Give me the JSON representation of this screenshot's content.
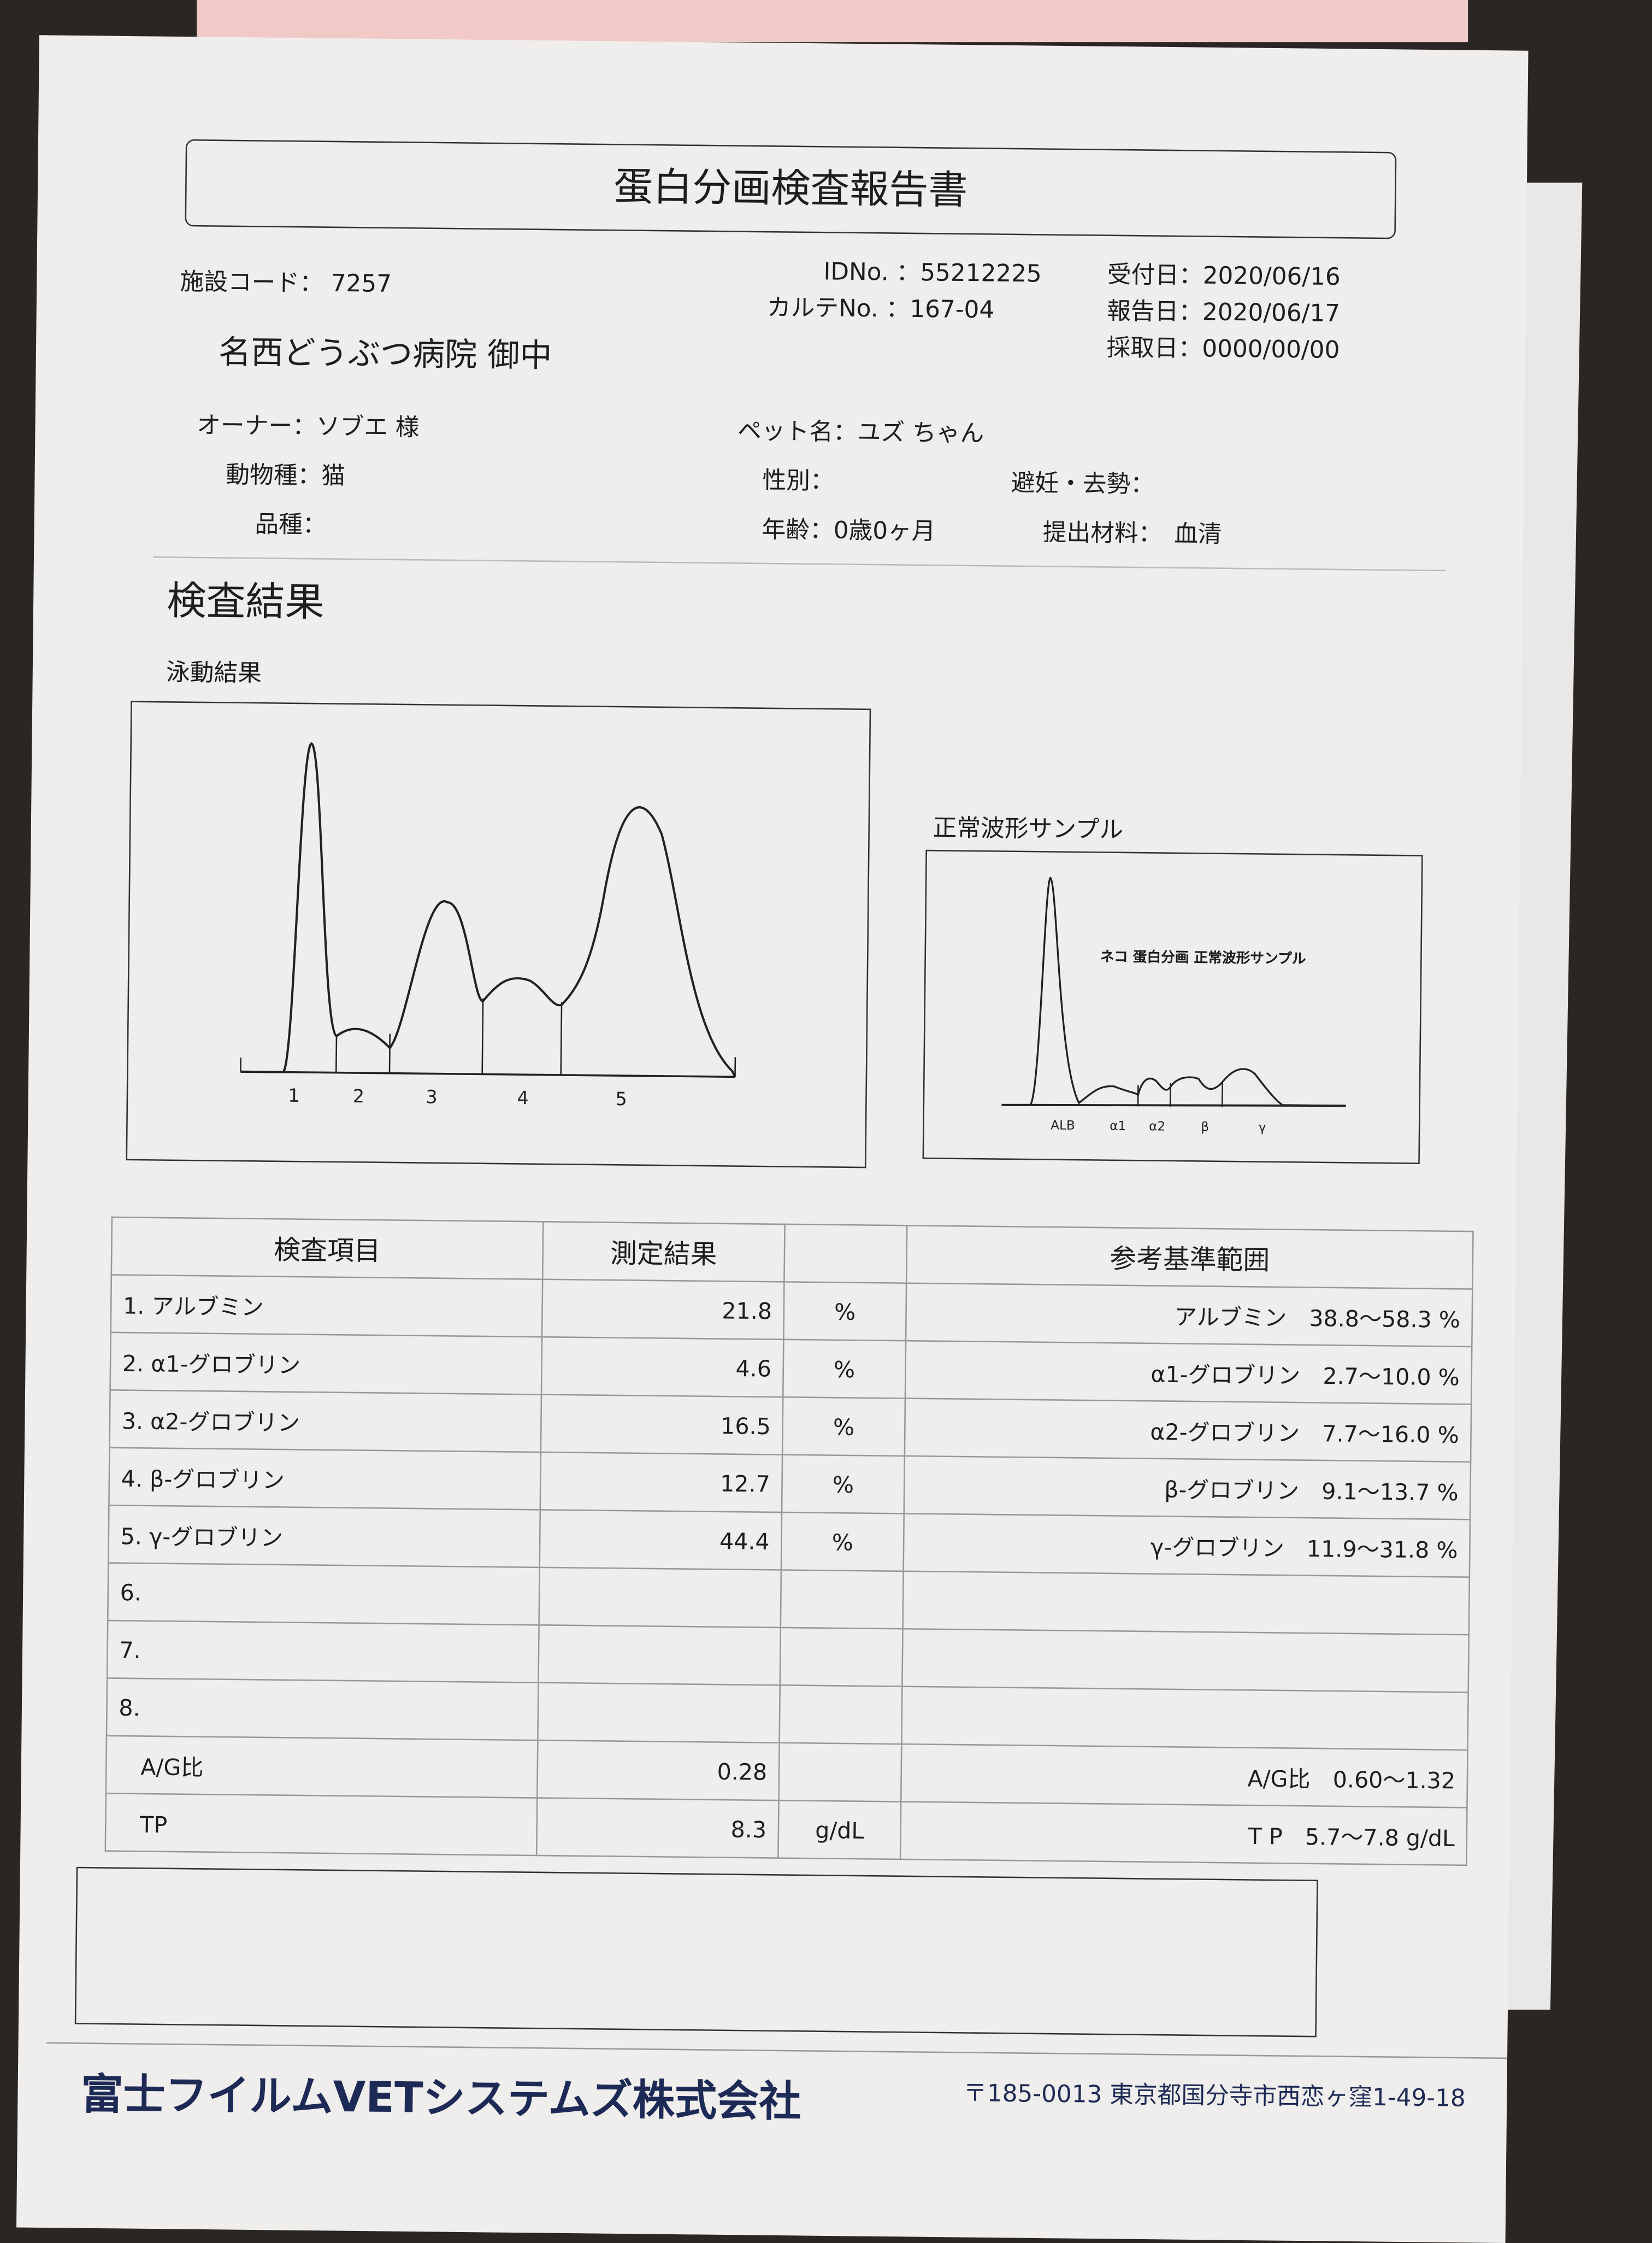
{
  "title": "蛋白分画検査報告書",
  "facility_code_label": "施設コード：",
  "facility_code": "7257",
  "id_label": "IDNo. ：",
  "id": "55212225",
  "karte_label": "カルテNo. ：",
  "karte": "167-04",
  "received_label": "受付日：",
  "received": "2020/06/16",
  "reported_label": "報告日：",
  "reported": "2020/06/17",
  "collected_label": "採取日：",
  "collected": "0000/00/00",
  "hospital": "名西どうぶつ病院 御中",
  "owner_label": "オーナー：",
  "owner": "ソブエ 様",
  "species_label": "動物種：",
  "species": "猫",
  "breed_label": "品種：",
  "pet_label": "ペット名：",
  "pet": "ユズ ちゃん",
  "sex_label": "性別：",
  "neuter_label": "避妊・去勢：",
  "age_label": "年齢：",
  "age": "0歳0ヶ月",
  "material_label": "提出材料：",
  "material": "血清",
  "results_heading": "検査結果",
  "electro_heading": "泳動結果",
  "electro_fraction_labels": [
    "1",
    "2",
    "3",
    "4",
    "5"
  ],
  "sample_heading": "正常波形サンプル",
  "sample_caption": "ネコ 蛋白分画 正常波形サンプル",
  "sample_fraction_labels": [
    "ALB",
    "α1",
    "α2",
    "β",
    "γ"
  ],
  "table": {
    "headers": [
      "検査項目",
      "測定結果",
      "",
      "参考基準範囲"
    ],
    "rows": [
      {
        "item": "1. アルブミン",
        "value": "21.8",
        "unit": "%",
        "ref": "アルブミン　38.8～58.3 %"
      },
      {
        "item": "2. α1-グロブリン",
        "value": "4.6",
        "unit": "%",
        "ref": "α1-グロブリン　2.7～10.0 %"
      },
      {
        "item": "3. α2-グロブリン",
        "value": "16.5",
        "unit": "%",
        "ref": "α2-グロブリン　7.7～16.0 %"
      },
      {
        "item": "4. β-グロブリン",
        "value": "12.7",
        "unit": "%",
        "ref": "β-グロブリン　9.1～13.7 %"
      },
      {
        "item": "5. γ-グロブリン",
        "value": "44.4",
        "unit": "%",
        "ref": "γ-グロブリン　11.9～31.8 %"
      },
      {
        "item": "6.",
        "value": "",
        "unit": "",
        "ref": ""
      },
      {
        "item": "7.",
        "value": "",
        "unit": "",
        "ref": ""
      },
      {
        "item": "8.",
        "value": "",
        "unit": "",
        "ref": ""
      },
      {
        "item": "　A/G比",
        "value": "0.28",
        "unit": "",
        "ref": "A/G比　0.60～1.32"
      },
      {
        "item": "　TP",
        "value": "8.3",
        "unit": "g/dL",
        "ref": "T P　5.7～7.8 g/dL"
      }
    ]
  },
  "company": "富士フイルムVETシステムズ株式会社",
  "address": "〒185-0013 東京都国分寺市西恋ヶ窪1-49-18"
}
